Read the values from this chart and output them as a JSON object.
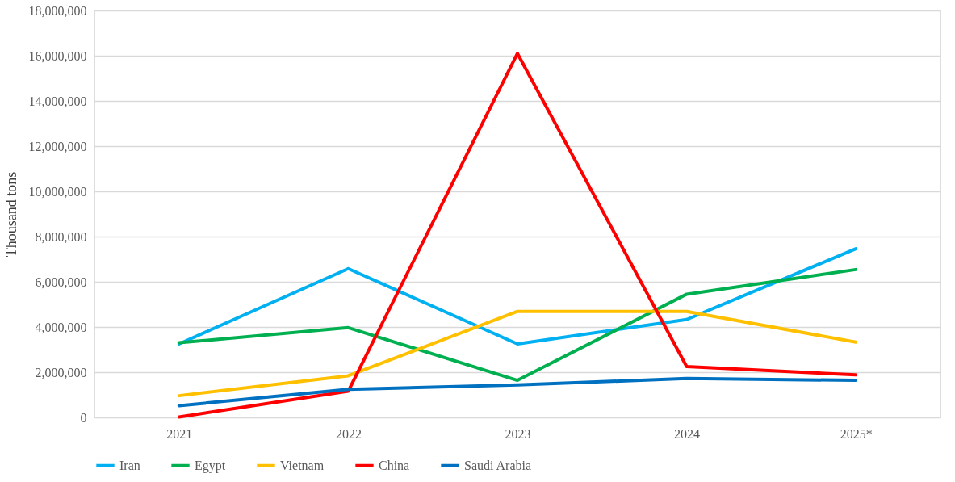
{
  "chart_data": {
    "type": "line",
    "ylabel": "Thousand tons",
    "categories": [
      "2021",
      "2022",
      "2023",
      "2024",
      "2025*"
    ],
    "ylim": [
      0,
      18000000
    ],
    "yticks": [
      0,
      {
        "value": 2000000,
        "label": "2,000,000"
      },
      {
        "value": 4000000,
        "label": "4,000,000"
      },
      {
        "value": 6000000,
        "label": "6,000,000"
      },
      {
        "value": 8000000,
        "label": "8,000,000"
      },
      {
        "value": 10000000,
        "label": "10,000,000"
      },
      {
        "value": 12000000,
        "label": "12,000,000"
      },
      {
        "value": 14000000,
        "label": "14,000,000"
      },
      {
        "value": 16000000,
        "label": "16,000,000"
      },
      {
        "value": 18000000,
        "label": "18,000,000"
      }
    ],
    "grid": "y",
    "legend": "bottom",
    "marker": "none",
    "line_style": "solid",
    "series": [
      {
        "name": "Iran",
        "color": "#00b0f0",
        "values": [
          3250000,
          6580000,
          3250000,
          4330000,
          7460000
        ]
      },
      {
        "name": "Egypt",
        "color": "#00b050",
        "values": [
          3300000,
          3970000,
          1640000,
          5450000,
          6540000
        ]
      },
      {
        "name": "Vietnam",
        "color": "#ffc000",
        "values": [
          960000,
          1840000,
          4690000,
          4690000,
          3330000
        ]
      },
      {
        "name": "China",
        "color": "#ff0000",
        "values": [
          20000,
          1160000,
          16100000,
          2250000,
          1880000
        ]
      },
      {
        "name": "Saudi Arabia",
        "color": "#0070c0",
        "values": [
          520000,
          1240000,
          1440000,
          1720000,
          1640000
        ]
      }
    ]
  }
}
